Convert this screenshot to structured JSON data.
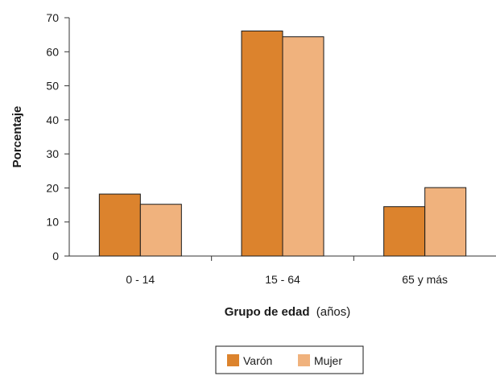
{
  "chart_data": {
    "type": "bar",
    "title": "",
    "xlabel": "Grupo de edad",
    "xlabel_unit": "(años)",
    "ylabel": "Porcentaje",
    "categories": [
      "0 - 14",
      "15 - 64",
      "65 y más"
    ],
    "series": [
      {
        "name": "Varón",
        "values": [
          18.2,
          66.1,
          14.5
        ],
        "color": "#dc832d"
      },
      {
        "name": "Mujer",
        "values": [
          15.2,
          64.4,
          20.1
        ],
        "color": "#f0b27d"
      }
    ],
    "ylim": [
      0,
      70
    ],
    "yticks": [
      "0",
      "10",
      "20",
      "30",
      "40",
      "50",
      "60",
      "70"
    ],
    "grid": false,
    "legend_position": "bottom-center"
  }
}
